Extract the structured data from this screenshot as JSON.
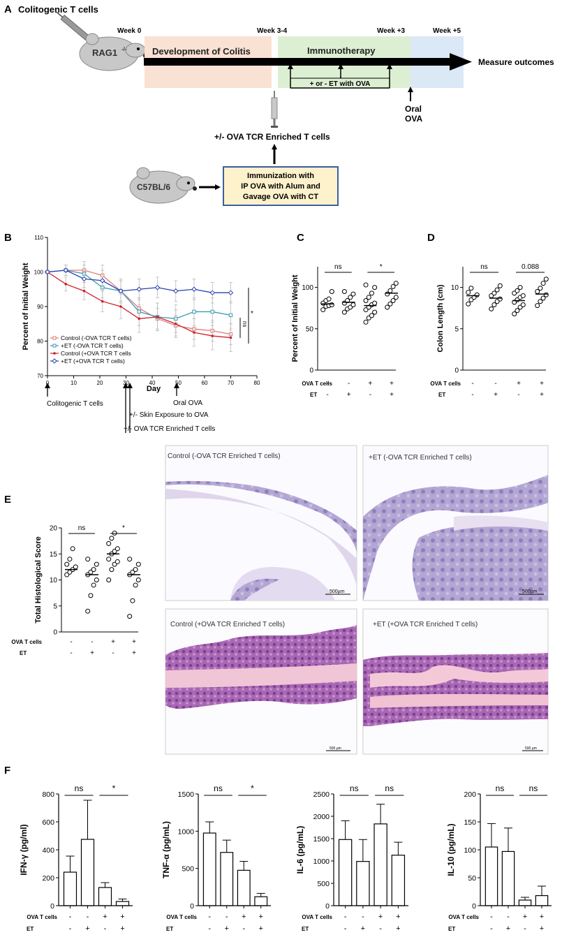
{
  "panelA": {
    "letter": "A",
    "colitogenic": "Colitogenic T cells",
    "rag": "RAG1",
    "rag_sup": "-/-",
    "weeks": [
      "Week 0",
      "Week 3-4",
      "Week +3",
      "Week +5"
    ],
    "dev": "Development of Colitis",
    "immuno": "Immunotherapy",
    "measure": "Measure outcomes",
    "et_box": "+ or - ET with OVA",
    "oral1": "Oral",
    "oral2": "OVA",
    "ova_tcr": "+/- OVA TCR Enriched T cells",
    "c57": "C57BL/6",
    "immun_lines": [
      "Immunization with",
      "IP OVA with Alum and",
      "Gavage OVA with CT"
    ],
    "colors": {
      "dev": "#f9e1d3",
      "immuno": "#dcefd3",
      "post": "#dbe8f6",
      "box_border": "#3b5fa0",
      "box_fill": "#fdf2cc"
    }
  },
  "panelB": {
    "letter": "B",
    "annotations": [
      "Colitogenic T cells",
      "Oral OVA",
      "+/- Skin Exposure to OVA",
      "+/- OVA TCR Enriched T cells"
    ],
    "sig": [
      "ns",
      "*"
    ]
  },
  "panelE": {
    "letter": "E",
    "images": [
      {
        "caption": "Control  (-OVA TCR Enriched T cells)",
        "scale": "500µm"
      },
      {
        "caption": "+ET (-OVA TCR Enriched T cells)",
        "scale": "500µm"
      },
      {
        "caption": "Control (+OVA TCR Enriched T cells)",
        "scale": "500 µm"
      },
      {
        "caption": "+ET (+OVA TCR Enriched T cells)",
        "scale": "500 µm"
      }
    ]
  },
  "panelF": {
    "letter": "F"
  },
  "groups": {
    "ova_label": "OVA T cells",
    "et_label": "ET",
    "ova_signs": [
      "-",
      "-",
      "+",
      "+"
    ],
    "et_signs": [
      "-",
      "+",
      "-",
      "+"
    ]
  },
  "chart_data": [
    {
      "id": "B",
      "type": "line",
      "xlabel": "Day",
      "ylabel": "Percent of Initial Weight",
      "xlim": [
        0,
        80
      ],
      "ylim": [
        70,
        110
      ],
      "xticks": [
        0,
        10,
        20,
        30,
        40,
        50,
        60,
        70,
        80
      ],
      "yticks": [
        70,
        80,
        90,
        100,
        110
      ],
      "x": [
        0,
        7,
        14,
        21,
        28,
        35,
        42,
        49,
        56,
        63,
        70
      ],
      "series": [
        {
          "name": "Control (-OVA TCR T cells)",
          "color": "#e07a7a",
          "marker": "square-open",
          "values": [
            100,
            100.5,
            100.5,
            99,
            94.5,
            89.5,
            86.5,
            84.5,
            83.5,
            83,
            82
          ],
          "err": [
            0,
            1.5,
            2.5,
            3,
            3,
            3,
            3,
            3,
            3,
            3,
            3
          ]
        },
        {
          "name": "+ET (-OVA TCR T cells)",
          "color": "#3a9bb0",
          "marker": "square-open",
          "values": [
            100,
            100.5,
            99.5,
            95.5,
            94.5,
            88.5,
            87,
            86.5,
            88.5,
            88.5,
            87.5
          ],
          "err": [
            0,
            1.5,
            2.5,
            3,
            3.5,
            4,
            4,
            4,
            4,
            4,
            4
          ]
        },
        {
          "name": "Control (+OVA TCR T cells",
          "color": "#d0202a",
          "marker": "dot",
          "values": [
            100,
            96.5,
            94.5,
            91.5,
            90,
            86.5,
            87,
            85,
            82.5,
            81.5,
            81
          ],
          "err": [
            0,
            2,
            2.5,
            3,
            3.5,
            4,
            4,
            4,
            4,
            4,
            4
          ]
        },
        {
          "name": "+ET (+OVA TCR T cells)",
          "color": "#2a3fb0",
          "marker": "diamond",
          "values": [
            100,
            100.5,
            98,
            97.5,
            94.5,
            95,
            95.5,
            94.5,
            95,
            94,
            94
          ],
          "err": [
            0,
            1.5,
            2.5,
            3,
            3,
            3,
            3,
            3,
            3,
            3,
            3
          ]
        }
      ]
    },
    {
      "id": "C",
      "type": "scatter",
      "ylabel": "Percent of  Initial Weight",
      "ylim": [
        0,
        125
      ],
      "yticks": [
        0,
        50,
        100
      ],
      "sig": [
        {
          "text": "ns",
          "pair": [
            0,
            1
          ]
        },
        {
          "text": "*",
          "pair": [
            2,
            3
          ]
        }
      ],
      "groups": [
        {
          "points": [
            73,
            77,
            78,
            79,
            81,
            84,
            86,
            95
          ],
          "mean": 80
        },
        {
          "points": [
            70,
            74,
            76,
            79,
            81,
            84,
            88,
            92,
            95
          ],
          "mean": 82
        },
        {
          "points": [
            58,
            63,
            66,
            70,
            73,
            76,
            79,
            81,
            84,
            88,
            93,
            100,
            103
          ],
          "mean": 78
        },
        {
          "points": [
            76,
            80,
            84,
            88,
            92,
            96,
            101,
            105
          ],
          "mean": 93
        }
      ]
    },
    {
      "id": "D",
      "type": "scatter",
      "ylabel": "Colon Length (cm)",
      "ylim": [
        0,
        12.5
      ],
      "yticks": [
        0,
        5,
        10
      ],
      "sig": [
        {
          "text": "ns",
          "pair": [
            0,
            1
          ]
        },
        {
          "text": "0.088",
          "pair": [
            2,
            3
          ]
        }
      ],
      "groups": [
        {
          "points": [
            8.0,
            8.5,
            8.8,
            9.1,
            9.4,
            9.9
          ],
          "mean": 9.0
        },
        {
          "points": [
            7.4,
            7.9,
            8.3,
            8.6,
            9.0,
            9.3,
            9.7,
            10.2
          ],
          "mean": 8.7
        },
        {
          "points": [
            6.8,
            7.2,
            7.6,
            7.9,
            8.2,
            8.5,
            8.8,
            9.0,
            9.3,
            9.6,
            10.0
          ],
          "mean": 8.4
        },
        {
          "points": [
            7.8,
            8.3,
            8.7,
            9.1,
            9.5,
            9.9,
            10.5,
            11.0
          ],
          "mean": 9.2
        }
      ]
    },
    {
      "id": "E",
      "type": "scatter",
      "ylabel": "Total Histological Score",
      "ylim": [
        0,
        20
      ],
      "yticks": [
        0,
        5,
        10,
        15,
        20
      ],
      "sig": [
        {
          "text": "ns",
          "pair": [
            0,
            1
          ]
        },
        {
          "text": "*",
          "pair": [
            2,
            3
          ]
        }
      ],
      "groups": [
        {
          "points": [
            11,
            11.5,
            12,
            12.5,
            13,
            14,
            16
          ],
          "mean": 12
        },
        {
          "points": [
            4,
            7,
            9,
            10,
            11,
            11.5,
            12,
            13,
            14
          ],
          "mean": 11
        },
        {
          "points": [
            10,
            12,
            13,
            13.5,
            14,
            15,
            15.5,
            16,
            17,
            18,
            19
          ],
          "mean": 15
        },
        {
          "points": [
            3,
            6,
            9,
            10,
            11,
            11.5,
            12,
            13,
            14
          ],
          "mean": 11
        }
      ]
    },
    {
      "id": "F1",
      "type": "bar",
      "ylabel": "IFN-γ (pg/ml)",
      "ylim": [
        0,
        800
      ],
      "yticks": [
        0,
        200,
        400,
        600,
        800
      ],
      "values": [
        240,
        475,
        130,
        30
      ],
      "err": [
        115,
        280,
        35,
        18
      ],
      "sig": [
        {
          "text": "ns",
          "pair": [
            0,
            1
          ]
        },
        {
          "text": "*",
          "pair": [
            2,
            3
          ]
        }
      ]
    },
    {
      "id": "F2",
      "type": "bar",
      "ylabel": "TNF-α (pg/mL)",
      "ylim": [
        0,
        1500
      ],
      "yticks": [
        0,
        500,
        1000,
        1500
      ],
      "values": [
        975,
        715,
        475,
        120
      ],
      "err": [
        150,
        165,
        120,
        45
      ],
      "sig": [
        {
          "text": "ns",
          "pair": [
            0,
            1
          ]
        },
        {
          "text": "*",
          "pair": [
            2,
            3
          ]
        }
      ]
    },
    {
      "id": "F3",
      "type": "bar",
      "ylabel": "IL-6 (pg/mL)",
      "ylim": [
        0,
        2500
      ],
      "yticks": [
        0,
        500,
        1000,
        1500,
        2000,
        2500
      ],
      "values": [
        1480,
        990,
        1830,
        1130
      ],
      "err": [
        420,
        490,
        440,
        290
      ],
      "sig": [
        {
          "text": "ns",
          "pair": [
            0,
            1
          ]
        },
        {
          "text": "ns",
          "pair": [
            2,
            3
          ]
        }
      ]
    },
    {
      "id": "F4",
      "type": "bar",
      "ylabel": "IL-10 (pg/mL)",
      "ylim": [
        0,
        200
      ],
      "yticks": [
        0,
        50,
        100,
        150,
        200
      ],
      "values": [
        105,
        97,
        10,
        18
      ],
      "err": [
        42,
        42,
        5,
        17
      ],
      "sig": [
        {
          "text": "ns",
          "pair": [
            0,
            1
          ]
        },
        {
          "text": "ns",
          "pair": [
            2,
            3
          ]
        }
      ]
    }
  ]
}
